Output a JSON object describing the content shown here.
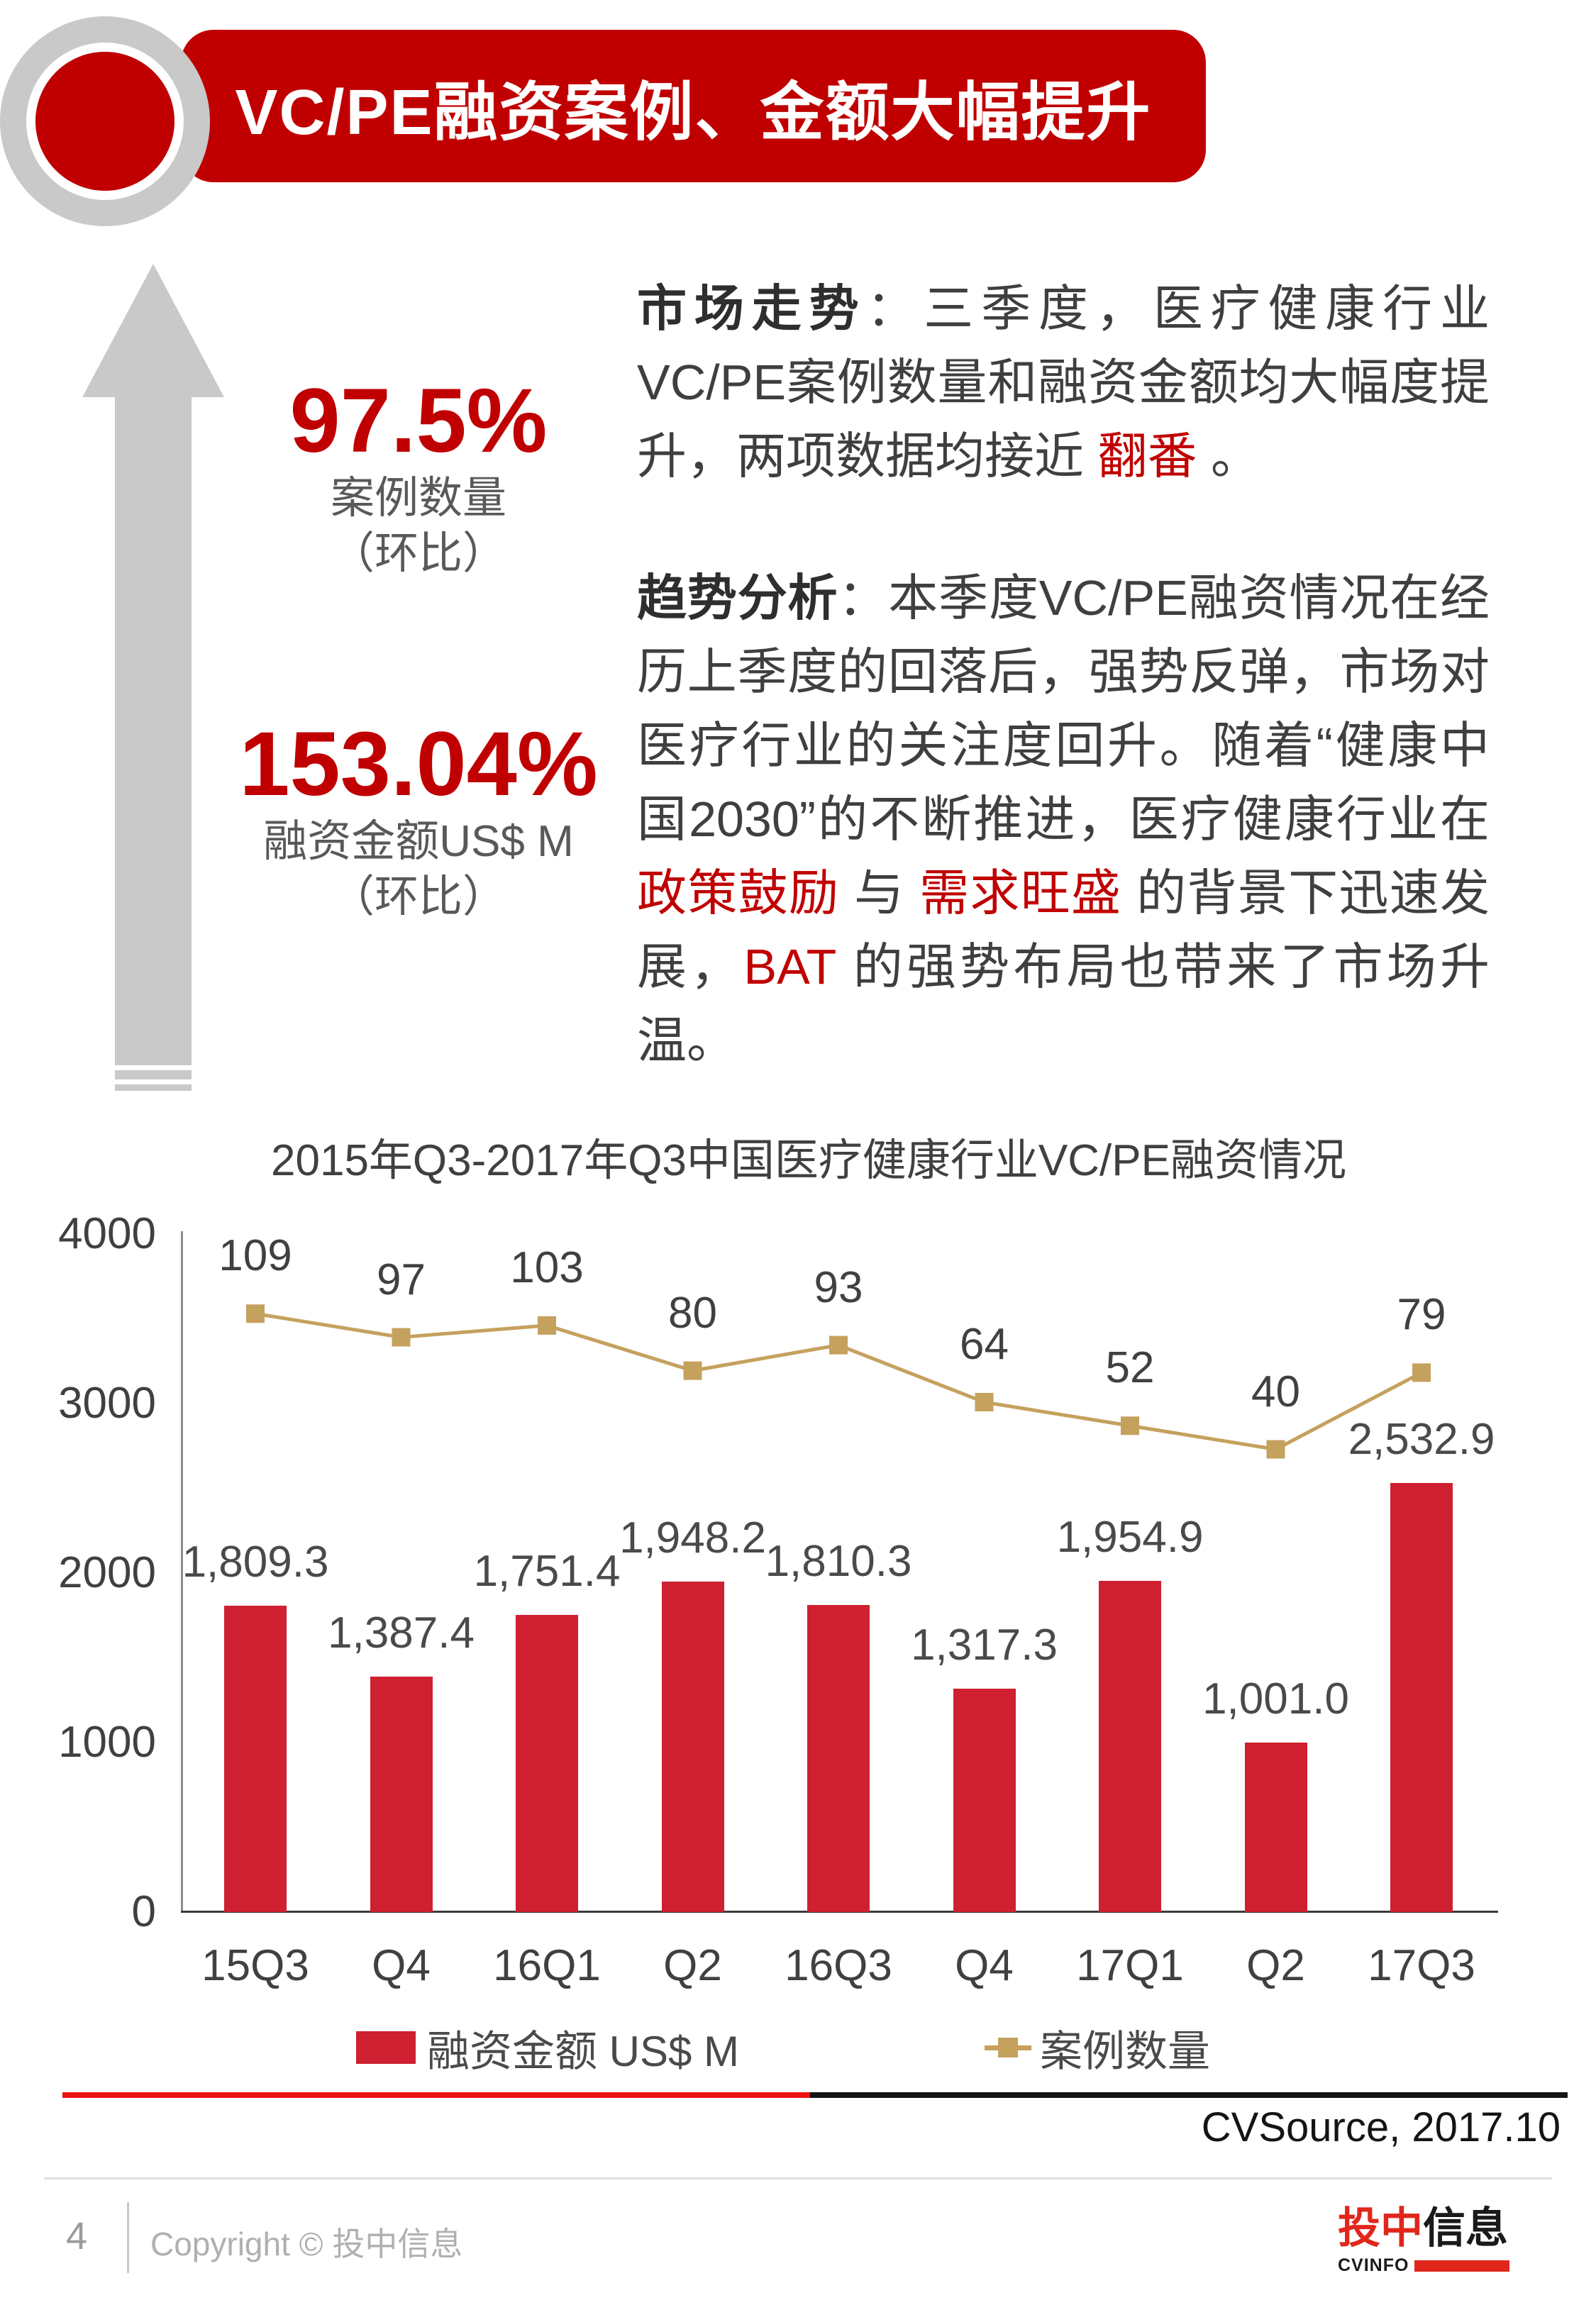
{
  "banner": {
    "title": "VC/PE融资案例、金额大幅提升"
  },
  "colors": {
    "accent_red": "#C00000",
    "bar_red": "#CE2030",
    "line_gold": "#C5A15E",
    "separator_red": "#EE1111"
  },
  "highlights": {
    "case_pct": "97.5%",
    "case_label": "案例数量",
    "case_sub": "（环比）",
    "amount_pct": "153.04%",
    "amount_label": "融资金额US$ M",
    "amount_sub": "（环比）"
  },
  "analysis": {
    "p1_lead": "市场走势",
    "p1_s1": "：三季度，医疗健康行业VC/PE案例数量和融资金额均大幅度提升，两项数据均接近 ",
    "p1_red": "翻番",
    "p1_s2": " 。",
    "p2_lead": "趋势分析",
    "p2_s1": "：本季度VC/PE融资情况在经历上季度的回落后，强势反弹，市场对医疗行业的关注度回升。随着“健康中国2030”的不断推进，医疗健康行业在 ",
    "p2_red1": "政策鼓励",
    "p2_s2": " 与 ",
    "p2_red2": "需求旺盛",
    "p2_s3": " 的背景下迅速发展，",
    "p2_red3": "BAT",
    "p2_s4": " 的强势布局也带来了市场升温。"
  },
  "chart_data": {
    "type": "bar+line",
    "title": "2015年Q3-2017年Q3中国医疗健康行业VC/PE融资情况",
    "categories": [
      "15Q3",
      "Q4",
      "16Q1",
      "Q2",
      "16Q3",
      "Q4",
      "17Q1",
      "Q2",
      "17Q3"
    ],
    "series": [
      {
        "name": "融资金额 US$ M",
        "type": "bar",
        "color": "#CE2030",
        "values": [
          1809.3,
          1387.4,
          1751.4,
          1948.2,
          1810.3,
          1317.3,
          1954.9,
          1001.0,
          2532.9
        ],
        "labels": [
          "1,809.3",
          "1,387.4",
          "1,751.4",
          "1,948.2",
          "1,810.3",
          "1,317.3",
          "1,954.9",
          "1,001.0",
          "2,532.9"
        ]
      },
      {
        "name": "案例数量",
        "type": "line",
        "color": "#C5A15E",
        "values": [
          109,
          97,
          103,
          80,
          93,
          64,
          52,
          40,
          79
        ],
        "labels": [
          "109",
          "97",
          "103",
          "80",
          "93",
          "64",
          "52",
          "40",
          "79"
        ]
      }
    ],
    "y_axis": {
      "min": 0,
      "max": 4000,
      "ticks": [
        0,
        1000,
        2000,
        3000,
        4000
      ]
    },
    "gridlines": false,
    "legend_position": "bottom",
    "source": "CVSource, 2017.10"
  },
  "footer": {
    "page_number": "4",
    "copyright": "Copyright © 投中信息",
    "logo_red": "投中",
    "logo_black": "信息",
    "logo_sub": "CVINFO"
  }
}
